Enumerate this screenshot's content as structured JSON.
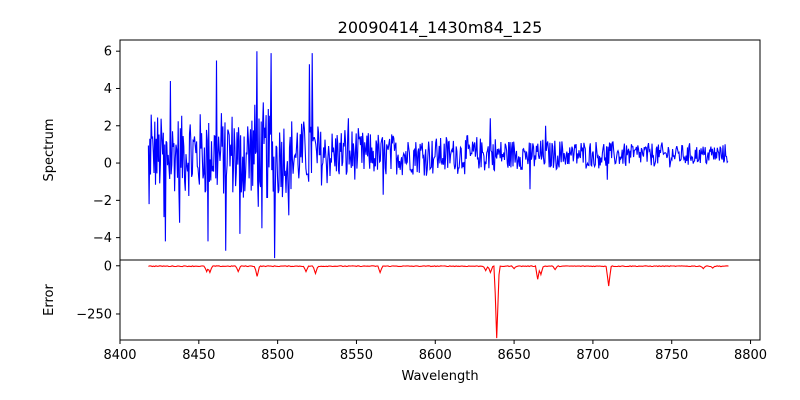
{
  "chart_data": {
    "type": "line",
    "title": "20090414_1430m84_125",
    "xlabel": "Wavelength",
    "xlim": [
      8400,
      8806
    ],
    "x_ticks": [
      8400,
      8450,
      8500,
      8550,
      8600,
      8650,
      8700,
      8750,
      8800
    ],
    "panels": [
      {
        "name": "spectrum",
        "ylabel": "Spectrum",
        "ylim": [
          -5.2,
          6.6
        ],
        "y_ticks": [
          -4,
          -2,
          0,
          2,
          4,
          6
        ],
        "color": "#0000ff",
        "x_range": [
          8418,
          8786
        ],
        "noise_profile": [
          {
            "x": 8418,
            "amp": 2.4
          },
          {
            "x": 8470,
            "amp": 2.6
          },
          {
            "x": 8490,
            "amp": 3.3
          },
          {
            "x": 8505,
            "amp": 2.3
          },
          {
            "x": 8560,
            "amp": 1.3
          },
          {
            "x": 8700,
            "amp": 0.8
          },
          {
            "x": 8786,
            "amp": 0.6
          }
        ],
        "features": [
          {
            "x": 8418.5,
            "y": -2.2
          },
          {
            "x": 8420,
            "y": 2.6
          },
          {
            "x": 8428,
            "y": -2.9
          },
          {
            "x": 8429,
            "y": -4.2
          },
          {
            "x": 8432,
            "y": 4.4
          },
          {
            "x": 8438,
            "y": -3.2
          },
          {
            "x": 8456,
            "y": -4.2
          },
          {
            "x": 8461,
            "y": 5.5
          },
          {
            "x": 8467,
            "y": -4.7
          },
          {
            "x": 8476,
            "y": -3.8
          },
          {
            "x": 8487,
            "y": 6.0
          },
          {
            "x": 8490,
            "y": -3.5
          },
          {
            "x": 8496,
            "y": 5.9
          },
          {
            "x": 8498,
            "y": -5.1
          },
          {
            "x": 8507,
            "y": -2.8
          },
          {
            "x": 8520,
            "y": 5.3
          },
          {
            "x": 8522,
            "y": 5.9
          },
          {
            "x": 8545,
            "y": 2.4
          },
          {
            "x": 8567,
            "y": -1.7
          },
          {
            "x": 8635,
            "y": 2.4
          },
          {
            "x": 8660,
            "y": -1.4
          },
          {
            "x": 8670,
            "y": 2.0
          },
          {
            "x": 8709,
            "y": -0.9
          },
          {
            "x": 8786,
            "y": 0.9
          }
        ]
      },
      {
        "name": "error",
        "ylabel": "Error",
        "ylim": [
          -385,
          30
        ],
        "y_ticks": [
          -250,
          0
        ],
        "color": "#ff0000",
        "x_range": [
          8418,
          8786
        ],
        "baseline": -2,
        "dips": [
          {
            "x": 8455,
            "y": -30
          },
          {
            "x": 8457,
            "y": -35
          },
          {
            "x": 8475,
            "y": -30
          },
          {
            "x": 8487,
            "y": -55
          },
          {
            "x": 8518,
            "y": -30
          },
          {
            "x": 8524,
            "y": -40
          },
          {
            "x": 8565,
            "y": -35
          },
          {
            "x": 8632,
            "y": -25
          },
          {
            "x": 8635,
            "y": -35
          },
          {
            "x": 8639,
            "y": -375
          },
          {
            "x": 8650,
            "y": -15
          },
          {
            "x": 8665,
            "y": -70
          },
          {
            "x": 8667,
            "y": -45
          },
          {
            "x": 8676,
            "y": -20
          },
          {
            "x": 8710,
            "y": -105
          },
          {
            "x": 8770,
            "y": -15
          },
          {
            "x": 8776,
            "y": -12
          }
        ]
      }
    ]
  }
}
